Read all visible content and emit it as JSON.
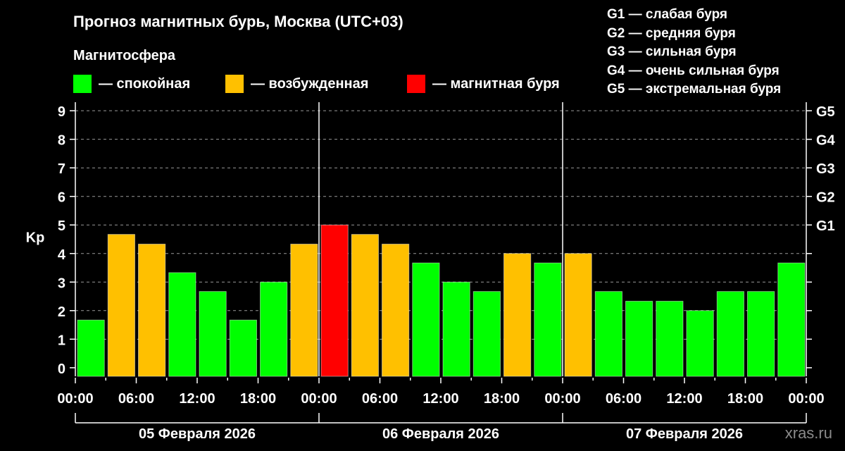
{
  "chart_data": {
    "type": "bar",
    "title": "Прогноз магнитных бурь, Москва (UTC+03)",
    "ylabel": "Kp",
    "ylim": [
      -0.3,
      9.3
    ],
    "yticks": [
      0,
      1,
      2,
      3,
      4,
      5,
      6,
      7,
      8,
      9
    ],
    "grid": true,
    "right_axis": [
      {
        "kp": 5,
        "label": "G1"
      },
      {
        "kp": 6,
        "label": "G2"
      },
      {
        "kp": 7,
        "label": "G3"
      },
      {
        "kp": 8,
        "label": "G4"
      },
      {
        "kp": 9,
        "label": "G5"
      }
    ],
    "xtick_labels": [
      "00:00",
      "06:00",
      "12:00",
      "18:00",
      "00:00",
      "06:00",
      "12:00",
      "18:00",
      "00:00",
      "06:00",
      "12:00",
      "18:00",
      "00:00"
    ],
    "days": [
      "05 Февраля 2026",
      "06 Февраля 2026",
      "07 Февраля 2026"
    ],
    "interval_hours": 3,
    "values": [
      1.67,
      4.67,
      4.33,
      3.33,
      2.67,
      1.67,
      3.0,
      4.33,
      5.0,
      4.67,
      4.33,
      3.67,
      3.0,
      2.67,
      4.0,
      3.67,
      4.0,
      2.67,
      2.33,
      2.33,
      2.0,
      2.67,
      2.67,
      3.67
    ],
    "levels": [
      "quiet",
      "active",
      "active",
      "quiet",
      "quiet",
      "quiet",
      "quiet",
      "active",
      "storm",
      "active",
      "active",
      "quiet",
      "quiet",
      "quiet",
      "active",
      "quiet",
      "active",
      "quiet",
      "quiet",
      "quiet",
      "quiet",
      "quiet",
      "quiet",
      "quiet"
    ]
  },
  "legend": {
    "title": "Магнитосфера",
    "items": [
      {
        "key": "quiet",
        "label": "— спокойная",
        "color": "#00ff00"
      },
      {
        "key": "active",
        "label": "— возбужденная",
        "color": "#ffc000"
      },
      {
        "key": "storm",
        "label": "— магнитная буря",
        "color": "#ff0000"
      }
    ]
  },
  "g_legend": [
    "G1 — слабая буря",
    "G2 — средняя буря",
    "G3 — сильная буря",
    "G4 — очень сильная буря",
    "G5 — экстремальная буря"
  ],
  "source": "xras.ru"
}
